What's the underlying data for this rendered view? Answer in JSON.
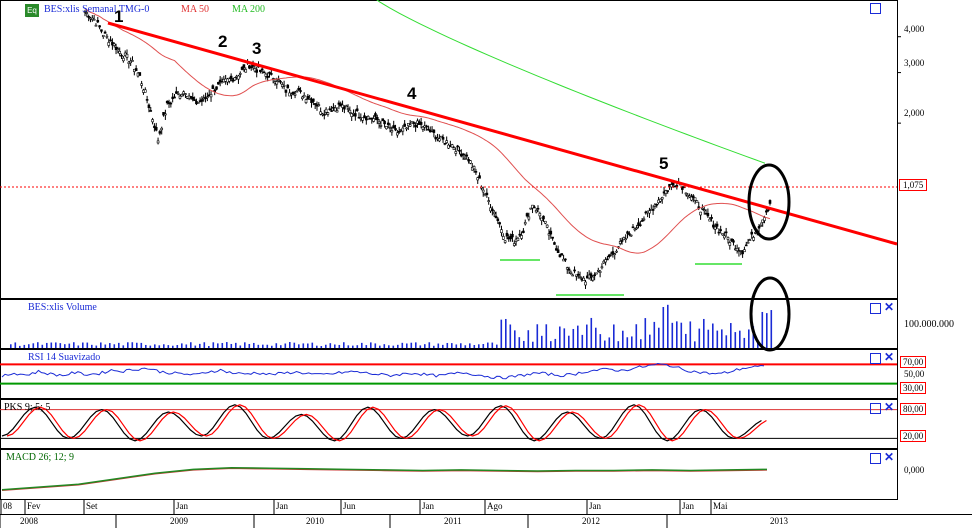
{
  "header": {
    "eq_badge": "Eq",
    "symbol_label": "BES:xlis Semanal TMG-0",
    "ma50_label": "MA 50",
    "ma200_label": "MA 200",
    "dropdown_glyph": "▾"
  },
  "colors": {
    "price_candle": "#000000",
    "ma50": "#e05050",
    "ma200": "#33dd33",
    "trendline": "#ff0000",
    "volume": "#1a2bd6",
    "rsi_line": "#1a2bd6",
    "rsi_upper": "#ff0000",
    "rsi_lower": "#009900",
    "stoch_k": "#000000",
    "stoch_d": "#ff0000",
    "macd": "#228822",
    "macd_signal": "#cc3333",
    "pane_title": "#1a2bd6",
    "annotation_circle": "#000000"
  },
  "panes": {
    "volume_title": "BES:xlis Volume",
    "rsi_title": "RSI 14 Suavizado",
    "stoch_title": "PKS 9; 5; 5",
    "macd_title": "MACD 26; 12; 9"
  },
  "chart_data": [
    {
      "type": "line",
      "name": "price",
      "scale": "log",
      "yticks": [
        "4,000",
        "3,000",
        "2,000",
        "1,075"
      ],
      "last_price_label": "1,075",
      "peak_labels": [
        "1",
        "2",
        "3",
        "4",
        "5"
      ],
      "candles_weekly_close_approx": [
        4.9,
        4.6,
        4.1,
        3.8,
        3.5,
        3.3,
        2.9,
        2.3,
        1.75,
        2.3,
        2.5,
        2.6,
        2.35,
        2.4,
        2.6,
        2.75,
        2.85,
        3.0,
        3.2,
        3.05,
        2.95,
        2.85,
        2.6,
        2.6,
        2.5,
        2.4,
        2.2,
        2.25,
        2.3,
        2.2,
        2.15,
        2.1,
        2.05,
        1.95,
        1.85,
        1.9,
        2.0,
        1.95,
        1.85,
        1.75,
        1.7,
        1.6,
        1.5,
        1.3,
        1.1,
        0.95,
        0.8,
        0.78,
        0.85,
        1.05,
        0.95,
        0.8,
        0.7,
        0.62,
        0.58,
        0.57,
        0.6,
        0.66,
        0.72,
        0.78,
        0.85,
        0.92,
        1.0,
        1.1,
        1.2,
        1.25,
        1.15,
        1.05,
        0.95,
        0.88,
        0.82,
        0.76,
        0.72,
        0.8,
        0.9,
        1.05
      ]
    },
    {
      "type": "bar",
      "name": "volume",
      "yticks": [
        "100.000.000"
      ]
    },
    {
      "type": "line",
      "name": "rsi",
      "ylim": [
        0,
        100
      ],
      "levels": [
        "70,00",
        "50,00",
        "30,00"
      ],
      "values_approx": [
        45,
        52,
        48,
        55,
        50,
        47,
        53,
        49,
        51,
        58,
        56,
        60,
        62,
        55,
        52,
        50,
        48,
        55,
        58,
        52,
        50,
        53,
        49,
        51,
        54,
        52,
        48,
        50,
        53,
        55,
        52,
        49,
        47,
        50,
        52,
        48,
        46,
        50,
        53,
        49,
        45,
        42,
        44,
        48,
        52,
        50,
        47,
        49,
        55,
        58,
        60,
        57,
        62,
        66,
        70,
        68,
        60,
        55,
        52,
        50,
        55,
        62,
        65
      ]
    },
    {
      "type": "line",
      "name": "stochastic",
      "ylim": [
        0,
        100
      ],
      "levels": [
        "80,00",
        "20,00"
      ],
      "cycles_approx": [
        25,
        85,
        20,
        80,
        15,
        75,
        25,
        90,
        20,
        70,
        15,
        85,
        20,
        80,
        25,
        88,
        15,
        75,
        20,
        90,
        15,
        80,
        20,
        60
      ]
    },
    {
      "type": "line",
      "name": "macd",
      "yticks": [
        "0,000"
      ],
      "values_approx": [
        -0.35,
        -0.3,
        -0.25,
        -0.15,
        -0.05,
        0.02,
        0.05,
        0.04,
        0.03,
        0.02,
        0.01,
        0.0,
        0.01,
        0.0,
        -0.01,
        0.0,
        0.0,
        0.01,
        0.0,
        0.01,
        0.02
      ]
    }
  ],
  "xaxis": {
    "months": [
      "08",
      "Fev",
      "Set",
      "Jan",
      "Jan",
      "Jun",
      "Jan",
      "Ago",
      "Jan",
      "Jan",
      "Mai"
    ],
    "years": [
      "2008",
      "2009",
      "2010",
      "2011",
      "2012",
      "2013"
    ]
  }
}
